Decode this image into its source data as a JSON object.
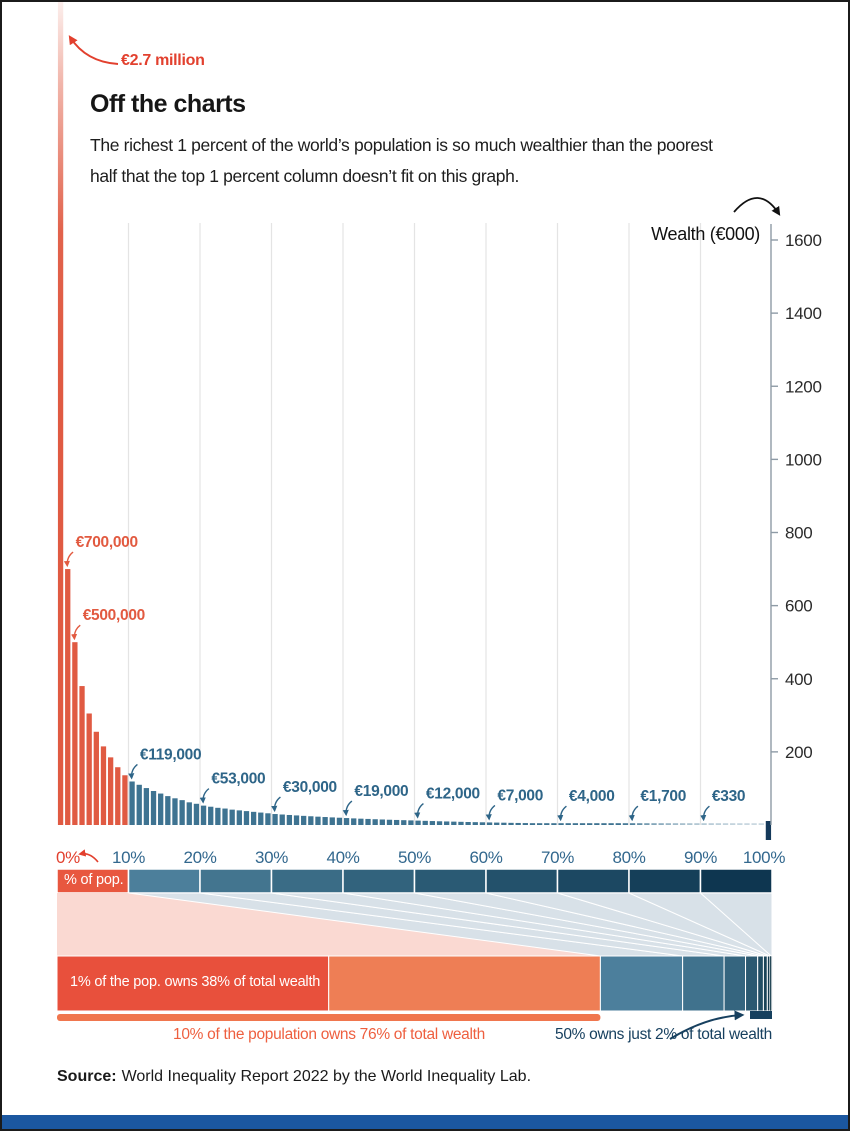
{
  "header": {
    "title": "Off the charts",
    "subtitle_line1": "The richest 1 percent of the world’s population is so much wealthier than the poorest",
    "subtitle_line2": "half that the top 1 percent column doesn’t fit on this graph."
  },
  "chart_data": {
    "type": "bar",
    "title": "Off the charts",
    "ylabel": "Wealth (€000)",
    "ylim": [
      0,
      1650
    ],
    "grid": "vertical, one line per population decile",
    "legend_position": "none",
    "offchart_annotation": "€2.7 million",
    "x_tick_labels": [
      "0%",
      "10%",
      "20%",
      "30%",
      "40%",
      "50%",
      "60%",
      "70%",
      "80%",
      "90%",
      "100%"
    ],
    "y_ticks": [
      200,
      400,
      600,
      800,
      1000,
      1200,
      1400,
      1600
    ],
    "percentile_wealth_thousands": [
      2700,
      700,
      500,
      380,
      305,
      255,
      215,
      185,
      158,
      136,
      119,
      110,
      101,
      93,
      86,
      79,
      73,
      68,
      62,
      58,
      53,
      50,
      47,
      45,
      42,
      40,
      38,
      36,
      34,
      32,
      30,
      28.7,
      27.4,
      26.2,
      25,
      23.9,
      22.8,
      21.8,
      20.8,
      19.9,
      19,
      18.1,
      17.3,
      16.6,
      15.8,
      15.1,
      14.4,
      13.8,
      13.2,
      12.6,
      12,
      11.4,
      10.8,
      10.2,
      9.7,
      9.2,
      8.7,
      8.2,
      7.8,
      7.4,
      7,
      6.6,
      6.3,
      5.9,
      5.6,
      5.3,
      5,
      4.7,
      4.5,
      4.2,
      4,
      3.7,
      3.4,
      3.1,
      2.8,
      2.6,
      2.4,
      2.2,
      2,
      1.85,
      1.7,
      1.44,
      1.23,
      1.04,
      0.89,
      0.75,
      0.64,
      0.54,
      0.46,
      0.39,
      0.33,
      0.28,
      0.23,
      0.19,
      0.15,
      0.12,
      0.09,
      0.06,
      0.03,
      -40
    ],
    "annotations": [
      {
        "label": "€700,000",
        "percentile": 2,
        "color_key": "red"
      },
      {
        "label": "€500,000",
        "percentile": 3,
        "color_key": "red"
      },
      {
        "label": "€119,000",
        "percentile": 11,
        "color_key": "blue"
      },
      {
        "label": "€53,000",
        "percentile": 21,
        "color_key": "blue"
      },
      {
        "label": "€30,000",
        "percentile": 31,
        "color_key": "blue"
      },
      {
        "label": "€19,000",
        "percentile": 41,
        "color_key": "blue"
      },
      {
        "label": "€12,000",
        "percentile": 51,
        "color_key": "blue"
      },
      {
        "label": "€7,000",
        "percentile": 61,
        "color_key": "blue"
      },
      {
        "label": "€4,000",
        "percentile": 71,
        "color_key": "blue"
      },
      {
        "label": "€1,700",
        "percentile": 81,
        "color_key": "blue"
      },
      {
        "label": "€330",
        "percentile": 91,
        "color_key": "blue"
      }
    ]
  },
  "pop_strip": {
    "label": "% of pop.",
    "segment_colors": [
      "#E8573F",
      "#4C7F9B",
      "#43758F",
      "#3A6C86",
      "#32637D",
      "#2A5A74",
      "#23516B",
      "#1C4862",
      "#153F59",
      "#0E3650"
    ]
  },
  "flow": {
    "pink": "#FAD9D2",
    "gray": "#D8E1E8"
  },
  "wealth_bar": {
    "top1_label": "1% of the pop. owns 38% of total wealth",
    "segments_pct": [
      38,
      38,
      11.5,
      5.8,
      3.0,
      1.7,
      0.8,
      0.55,
      0.35,
      0.2,
      0.1
    ],
    "segment_colors": [
      "#E8503C",
      "#EE7E55",
      "#4C7F9C",
      "#40728D",
      "#35657F",
      "#2B5971",
      "#224E64",
      "#1A4458",
      "#133B4E",
      "#0D3445",
      "#092D3E"
    ]
  },
  "callouts": {
    "top10_label": "10% of the population owns 76% of total wealth",
    "bottom50_label": "50% owns just 2% of total wealth"
  },
  "source": {
    "prefix": "Source:",
    "text": "World Inequality Report 2022 by the World Inequality Lab."
  },
  "colors": {
    "bar_red": "#E05A42",
    "bar_teal": "#3E7391",
    "negative_bar": "#14395A",
    "annotation_red": "#E25A40",
    "annotation_blue": "#2E6588",
    "accent_red": "#E2402E",
    "xlabel_blue": "#33688E",
    "y_tick_text": "#2B2B2B",
    "gridline": "#E4E4E4",
    "axis_line": "#8E9BA6",
    "underline_orange": "#F0764E",
    "navy": "#16405E",
    "footer_blue": "#1B57A0"
  }
}
